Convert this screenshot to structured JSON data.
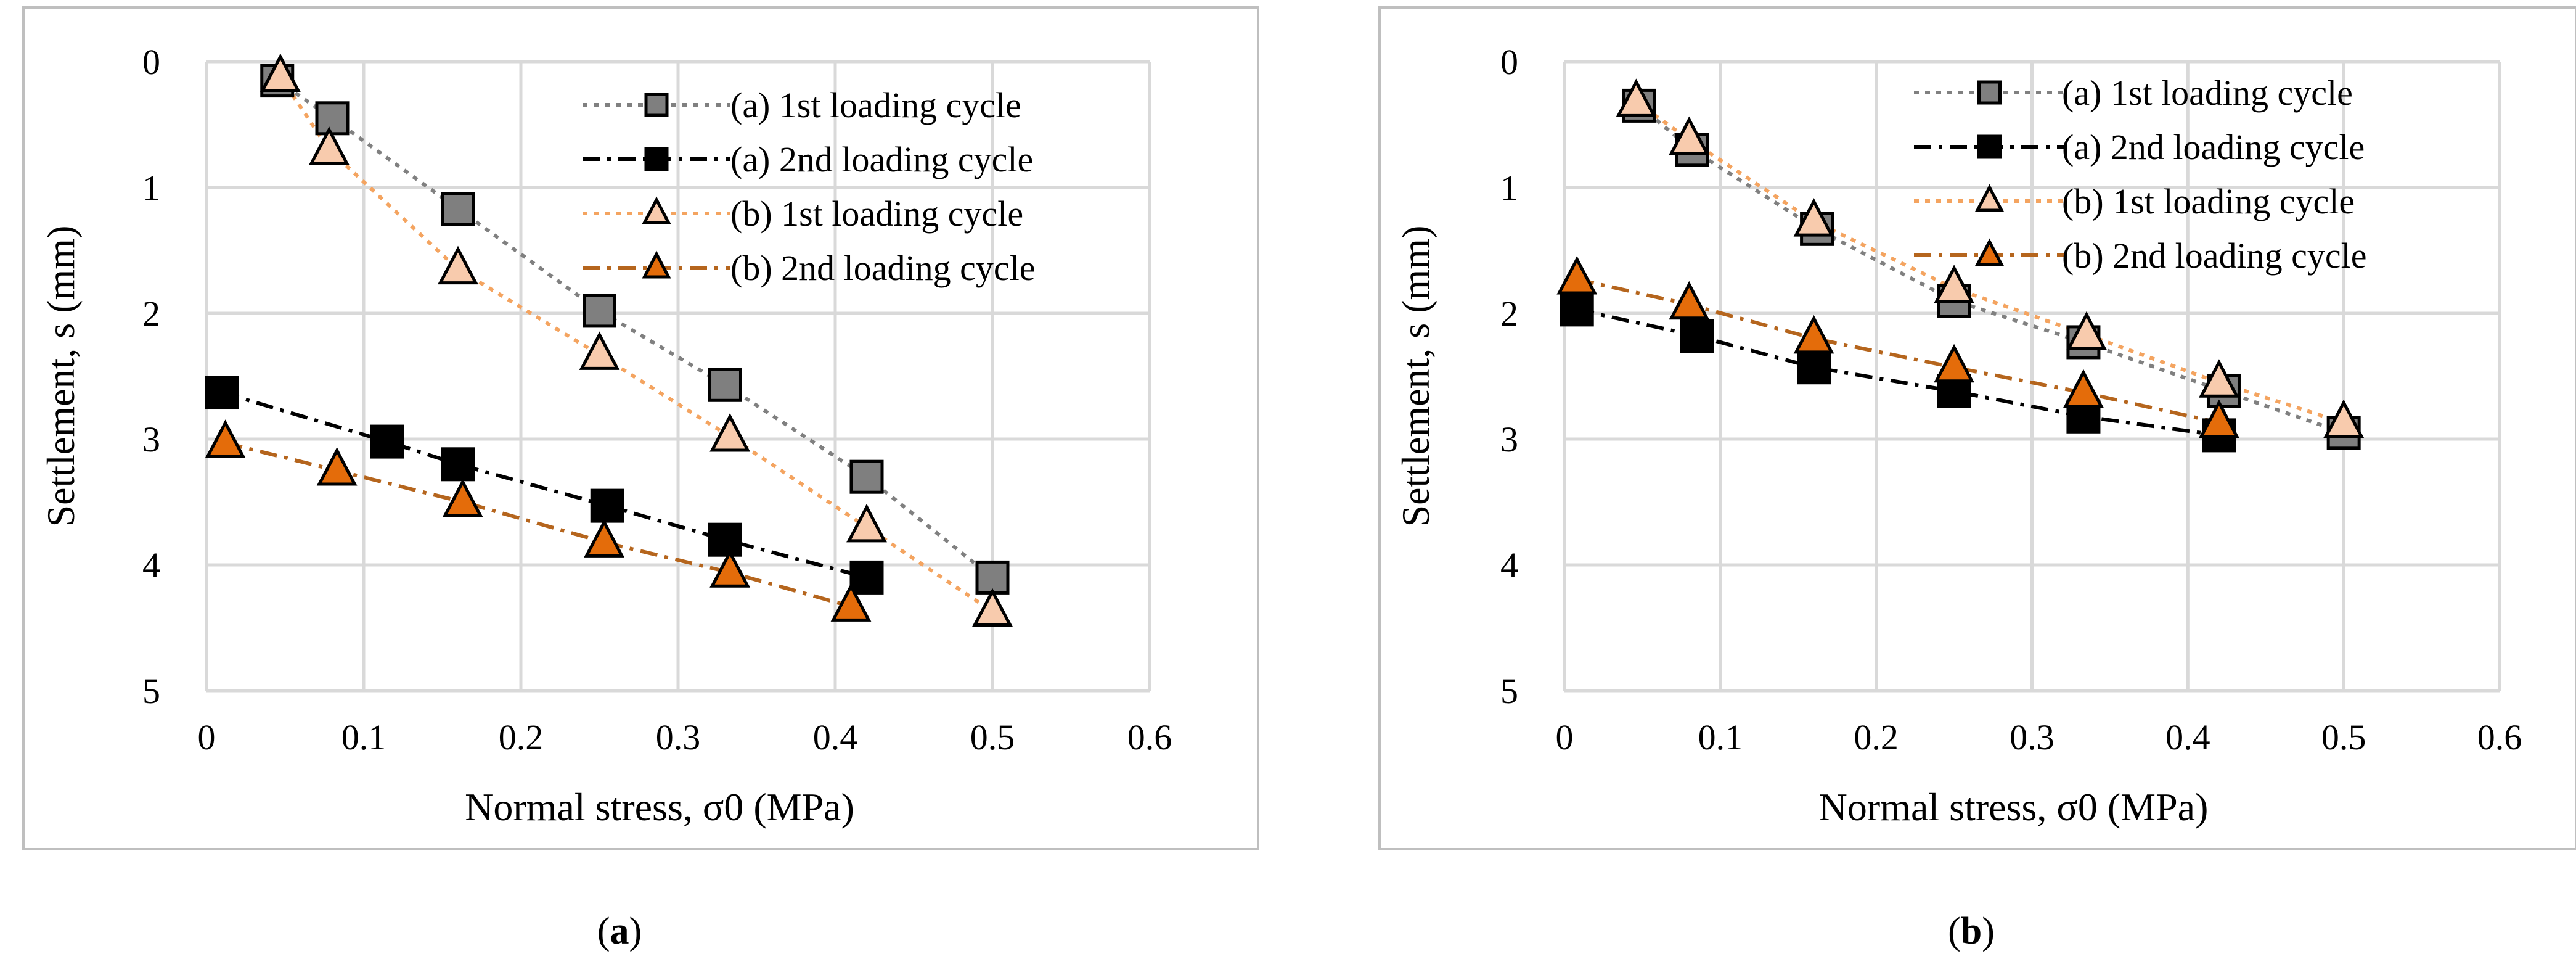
{
  "chart_data": [
    {
      "type": "line",
      "panel_label": "a",
      "xlabel": "Normal stress, σ0 (MPa)",
      "ylabel": "Settlement, s (mm)",
      "xlim": [
        0,
        0.6
      ],
      "ylim": [
        0,
        5
      ],
      "y_inverted": true,
      "xticks": [
        "0",
        "0.1",
        "0.2",
        "0.3",
        "0.4",
        "0.5",
        "0.6"
      ],
      "yticks": [
        "0",
        "1",
        "2",
        "3",
        "4",
        "5"
      ],
      "grid": true,
      "legend_position": "top-right",
      "series": [
        {
          "name": "(a) 1st loading cycle",
          "style": "grey-square-dotted",
          "x": [
            0.045,
            0.08,
            0.16,
            0.25,
            0.33,
            0.42,
            0.5
          ],
          "y": [
            0.15,
            0.45,
            1.17,
            1.98,
            2.57,
            3.3,
            4.1
          ]
        },
        {
          "name": "(a) 2nd loading cycle",
          "style": "black-square-dashdot",
          "x": [
            0.01,
            0.115,
            0.16,
            0.255,
            0.33,
            0.42
          ],
          "y": [
            2.63,
            3.02,
            3.2,
            3.53,
            3.8,
            4.1
          ]
        },
        {
          "name": "(b) 1st loading cycle",
          "style": "peach-triangle-dotted",
          "x": [
            0.047,
            0.078,
            0.16,
            0.25,
            0.333,
            0.42,
            0.5
          ],
          "y": [
            0.12,
            0.7,
            1.65,
            2.33,
            2.98,
            3.7,
            4.37
          ]
        },
        {
          "name": "(b) 2nd loading cycle",
          "style": "orange-triangle-dashdot",
          "x": [
            0.012,
            0.083,
            0.163,
            0.253,
            0.333,
            0.41
          ],
          "y": [
            3.03,
            3.25,
            3.5,
            3.82,
            4.06,
            4.33
          ]
        }
      ]
    },
    {
      "type": "line",
      "panel_label": "b",
      "xlabel": "Normal stress, σ0 (MPa)",
      "ylabel": "Settlement, s (mm)",
      "xlim": [
        0,
        0.6
      ],
      "ylim": [
        0,
        5
      ],
      "y_inverted": true,
      "xticks": [
        "0",
        "0.1",
        "0.2",
        "0.3",
        "0.4",
        "0.5",
        "0.6"
      ],
      "yticks": [
        "0",
        "1",
        "2",
        "3",
        "4",
        "5"
      ],
      "grid": true,
      "legend_position": "top-right",
      "series": [
        {
          "name": "(a) 1st loading cycle",
          "style": "grey-square-dotted",
          "x": [
            0.048,
            0.082,
            0.162,
            0.25,
            0.333,
            0.423,
            0.5
          ],
          "y": [
            0.35,
            0.7,
            1.33,
            1.9,
            2.23,
            2.62,
            2.95
          ]
        },
        {
          "name": "(a) 2nd loading cycle",
          "style": "black-square-dashdot",
          "x": [
            0.008,
            0.085,
            0.16,
            0.25,
            0.333,
            0.42
          ],
          "y": [
            1.97,
            2.18,
            2.43,
            2.62,
            2.82,
            2.97
          ]
        },
        {
          "name": "(b) 1st loading cycle",
          "style": "peach-triangle-dotted",
          "x": [
            0.046,
            0.08,
            0.16,
            0.25,
            0.335,
            0.42,
            0.5
          ],
          "y": [
            0.32,
            0.62,
            1.27,
            1.8,
            2.17,
            2.55,
            2.87
          ]
        },
        {
          "name": "(b) 2nd loading cycle",
          "style": "orange-triangle-dashdot",
          "x": [
            0.008,
            0.08,
            0.16,
            0.25,
            0.333,
            0.42
          ],
          "y": [
            1.73,
            1.93,
            2.2,
            2.43,
            2.63,
            2.87
          ]
        }
      ]
    }
  ],
  "colors": {
    "grey_marker": "#7f7f7f",
    "grey_line": "#808080",
    "black": "#000000",
    "peach_marker": "#f8cbad",
    "peach_line": "#f4a460",
    "orange_marker": "#e46c0a",
    "orange_line": "#b5651d",
    "grid": "#d9d9d9",
    "frame": "#bfbfbf"
  }
}
